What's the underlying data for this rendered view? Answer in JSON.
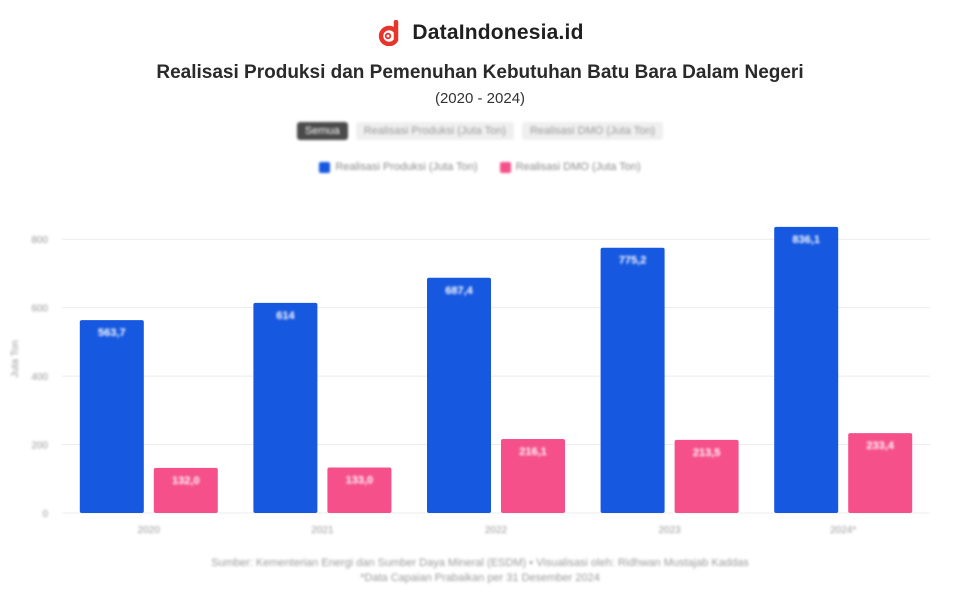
{
  "brand": {
    "name": "DataIndonesia.id",
    "logo_icon": "dataindonesia-logo-icon",
    "logo_color": "#e8342a"
  },
  "toggles": [
    {
      "label": "Semua",
      "active": true
    },
    {
      "label": "Realisasi Produksi (Juta Ton)",
      "active": false
    },
    {
      "label": "Realisasi DMO (Juta Ton)",
      "active": false
    }
  ],
  "chart_data": {
    "type": "bar",
    "title": "Realisasi Produksi dan Pemenuhan Kebutuhan Batu Bara Dalam Negeri",
    "subtitle": "(2020 - 2024)",
    "categories": [
      "2020",
      "2021",
      "2022",
      "2023",
      "2024*"
    ],
    "series": [
      {
        "name": "Realisasi Produksi (Juta Ton)",
        "color": "#1658e0",
        "values": [
          563.7,
          614,
          687.4,
          775.2,
          836.1
        ],
        "labels": [
          "563,7",
          "614",
          "687,4",
          "775,2",
          "836,1"
        ]
      },
      {
        "name": "Realisasi DMO (Juta Ton)",
        "color": "#f5508a",
        "values": [
          132,
          133,
          216.1,
          213.5,
          233.4
        ],
        "labels": [
          "132,0",
          "133,0",
          "216,1",
          "213,5",
          "233,4"
        ]
      }
    ],
    "ylabel": "Juta Ton",
    "ylim": [
      0,
      900
    ],
    "yticks": [
      0,
      200,
      400,
      600,
      800
    ],
    "ytick_labels": [
      "0",
      "200",
      "400",
      "600",
      "800"
    ],
    "grid": true,
    "legend_position": "top-center"
  },
  "footer": {
    "source": "Sumber: Kementerian Energi dan Sumber Daya Mineral (ESDM) • Visualisasi oleh: Ridhwan Mustajab Kaddas",
    "note": "*Data Capaian Prabaikan per 31 Desember 2024"
  }
}
